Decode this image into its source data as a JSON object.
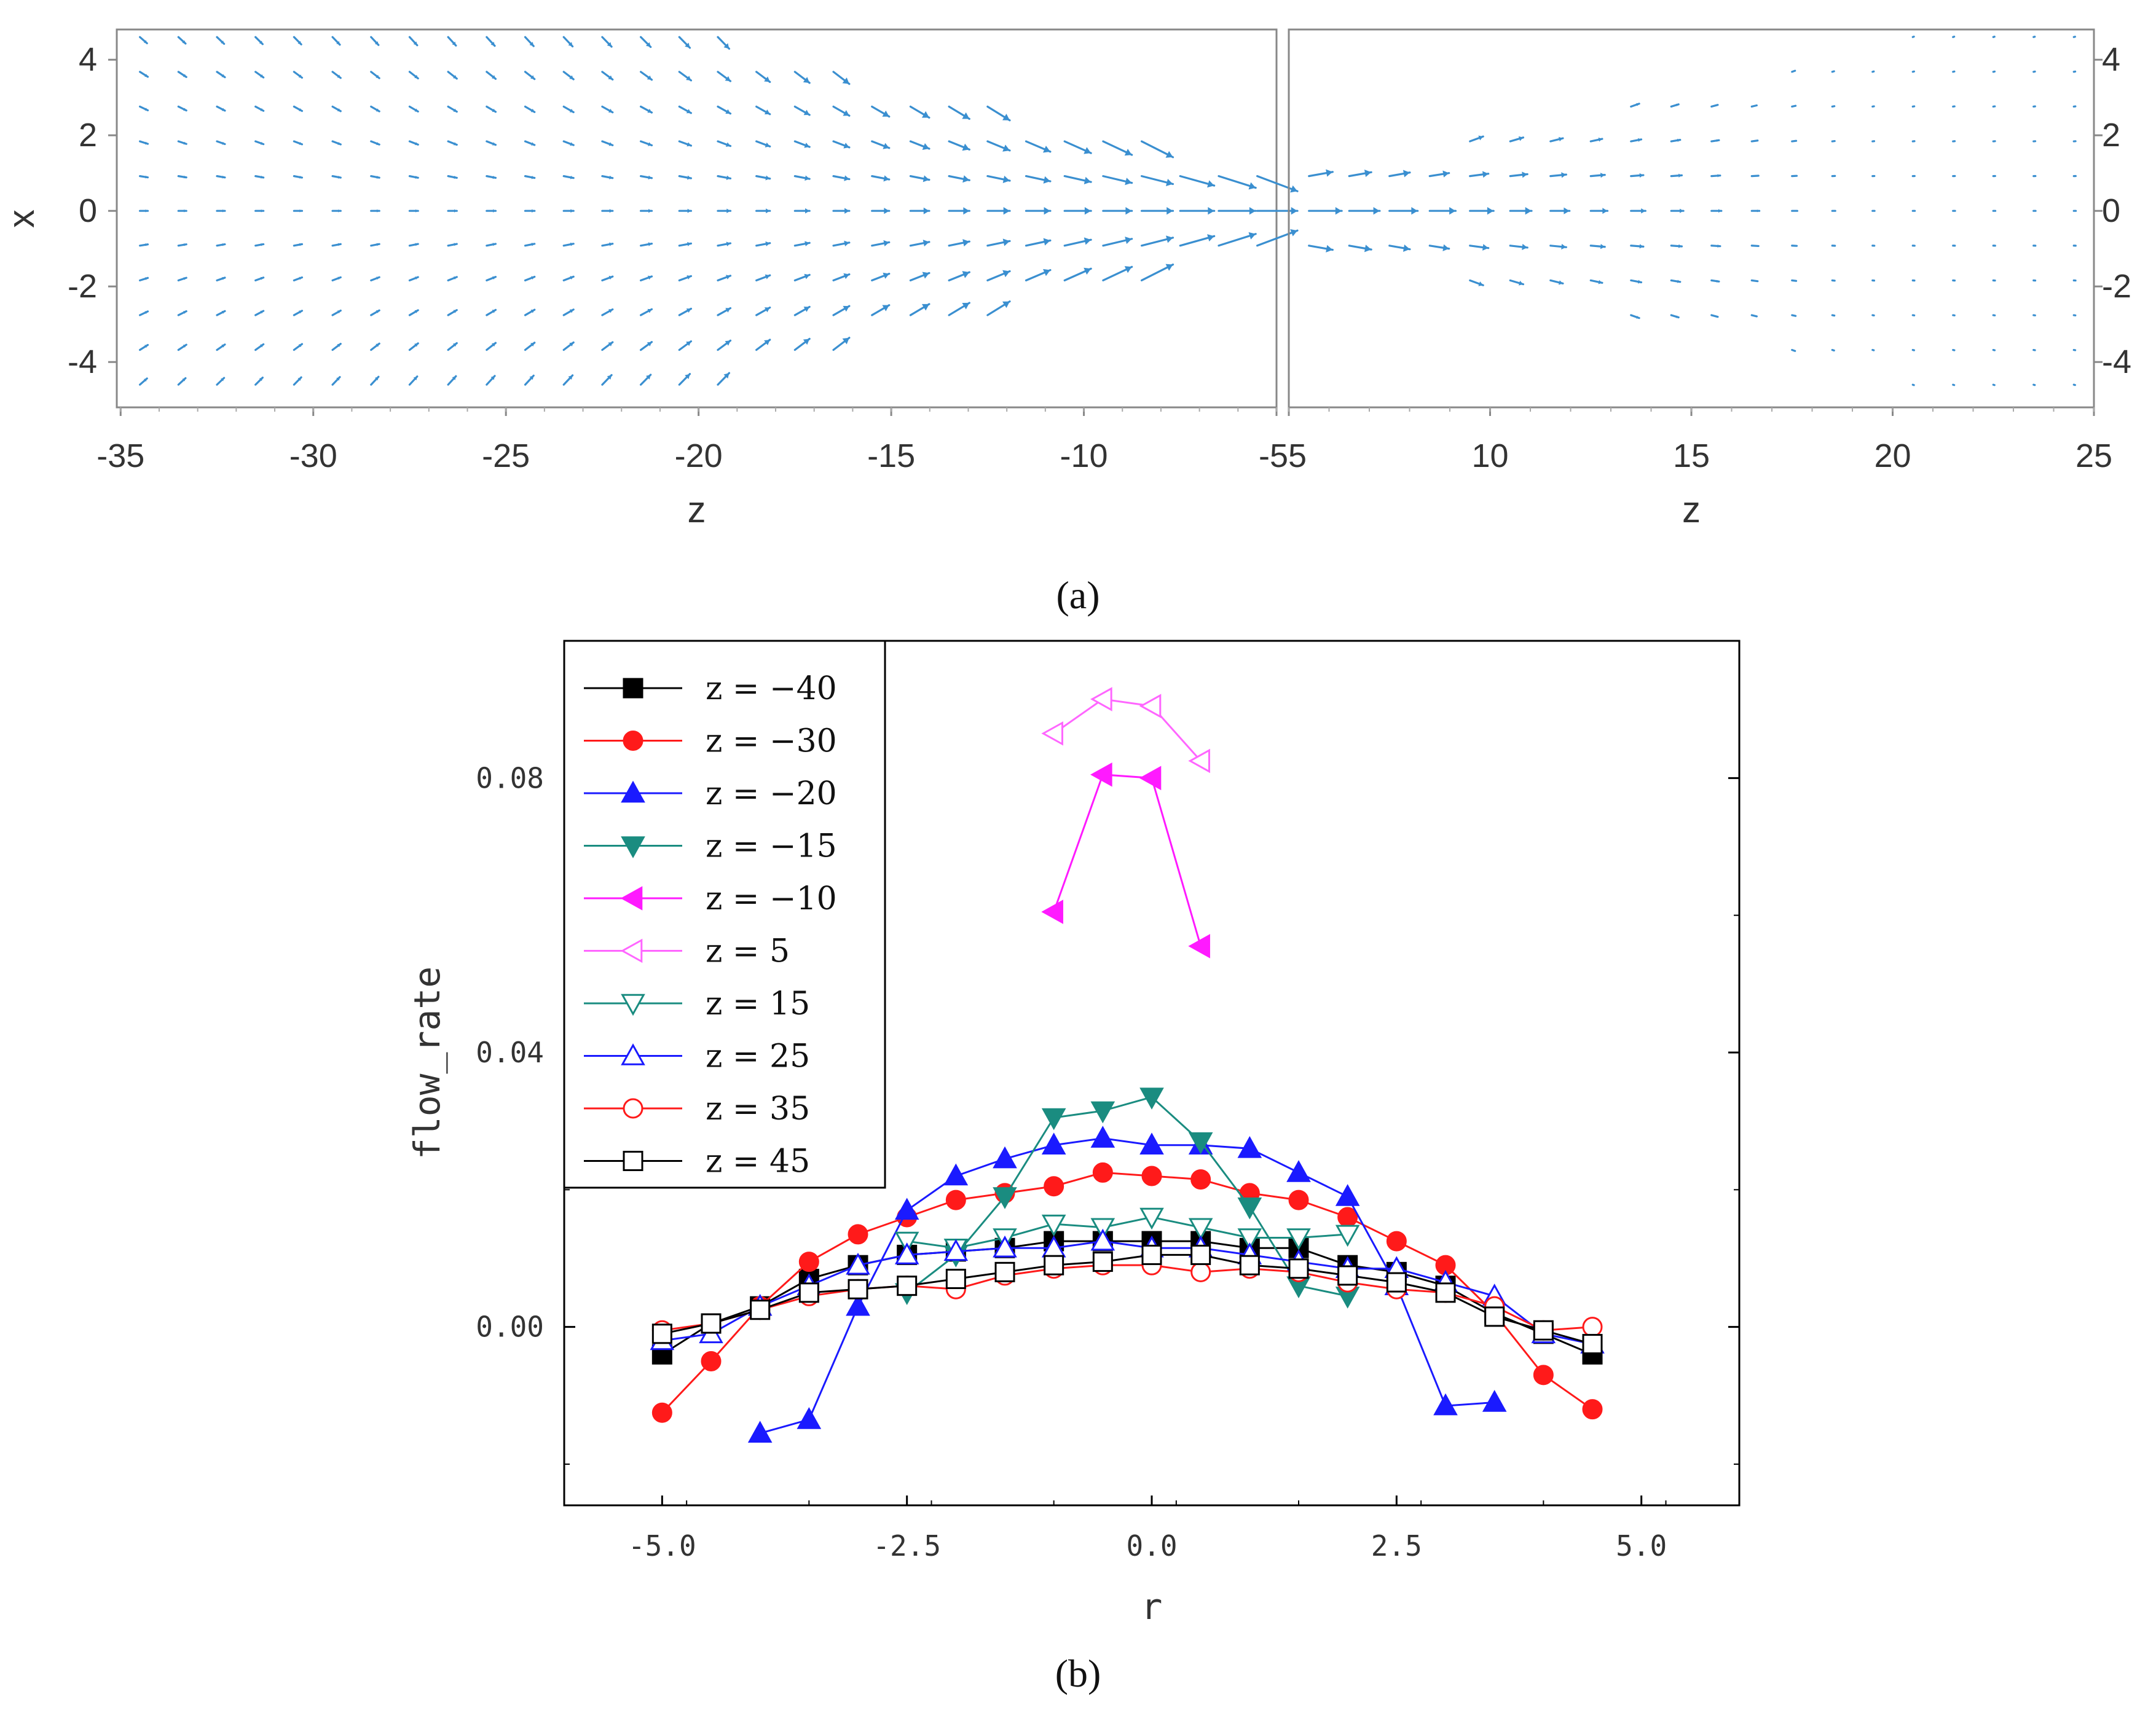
{
  "chart_data": [
    {
      "id": "a",
      "type": "quiver",
      "panel_label": "(a)",
      "arrow_color": "#3a8fd0",
      "note": "velocity vector field on two sub-panels",
      "ylabel": "x",
      "yticks": [
        "4",
        "2",
        "0",
        "-2",
        "-4"
      ],
      "ylim": [
        -5.2,
        4.8
      ],
      "panels": [
        {
          "xlabel": "z",
          "xlim": [
            -35,
            -5
          ],
          "xticks": [
            "-35",
            "-30",
            "-25",
            "-20",
            "-15",
            "-10",
            "-5"
          ]
        },
        {
          "xlabel": "z",
          "xlim": [
            5,
            25
          ],
          "xticks": [
            "5",
            "10",
            "15",
            "20",
            "25"
          ]
        }
      ],
      "joined_tick_label": "-55"
    },
    {
      "id": "b",
      "type": "line",
      "panel_label": "(b)",
      "xlabel": "r",
      "ylabel": "flow_rate",
      "xlim": [
        -6,
        6
      ],
      "ylim": [
        -0.026,
        0.1
      ],
      "xticks": [
        "-5.0",
        "-2.5",
        "0.0",
        "2.5",
        "5.0"
      ],
      "yticks": [
        "0.00",
        "0.04",
        "0.08"
      ],
      "legend_position": "top-left",
      "series": [
        {
          "name": "z = -40",
          "color": "#000000",
          "marker": "square",
          "filled": true,
          "x": [
            -5,
            -4.5,
            -4,
            -3.5,
            -3,
            -2.5,
            -2,
            -1.5,
            -1,
            -0.5,
            0,
            0.5,
            1,
            1.5,
            2,
            2.5,
            3,
            3.5,
            4,
            4.5
          ],
          "y": [
            -0.004,
            0.0005,
            0.003,
            0.007,
            0.009,
            0.0105,
            0.011,
            0.0115,
            0.0125,
            0.0125,
            0.0125,
            0.0125,
            0.0115,
            0.0115,
            0.009,
            0.008,
            0.006,
            0.002,
            -0.001,
            -0.004
          ]
        },
        {
          "name": "z = -30",
          "color": "#ff1a1a",
          "marker": "circle",
          "filled": true,
          "x": [
            -5,
            -4.5,
            -4,
            -3.5,
            -3,
            -2.5,
            -2,
            -1.5,
            -1,
            -0.5,
            0,
            0.5,
            1,
            1.5,
            2,
            2.5,
            3,
            3.5,
            4,
            4.5
          ],
          "y": [
            -0.0125,
            -0.005,
            0.003,
            0.0095,
            0.0135,
            0.016,
            0.0185,
            0.0195,
            0.0205,
            0.0225,
            0.022,
            0.0215,
            0.0195,
            0.0185,
            0.016,
            0.0125,
            0.009,
            0.002,
            -0.007,
            -0.012
          ]
        },
        {
          "name": "z = -20",
          "color": "#1a1aff",
          "marker": "triangle-up",
          "filled": true,
          "x": [
            -4,
            -3.5,
            -3,
            -2.5,
            -2,
            -1.5,
            -1,
            -0.5,
            0,
            0.5,
            1,
            1.5,
            2,
            2.5,
            3,
            3.5
          ],
          "y": [
            -0.0155,
            -0.0135,
            0.003,
            0.017,
            0.022,
            0.0245,
            0.0265,
            0.0275,
            0.0265,
            0.0265,
            0.026,
            0.0225,
            0.019,
            0.006,
            -0.0115,
            -0.011
          ]
        },
        {
          "name": "z = -15",
          "color": "#1a8c80",
          "marker": "triangle-down",
          "filled": true,
          "x": [
            -2.5,
            -2,
            -1.5,
            -1,
            -0.5,
            0,
            0.5,
            1,
            1.5,
            2
          ],
          "y": [
            0.005,
            0.0105,
            0.019,
            0.0305,
            0.0315,
            0.0335,
            0.027,
            0.0175,
            0.006,
            0.0045
          ]
        },
        {
          "name": "z = -10",
          "color": "#ff1aff",
          "marker": "triangle-left",
          "filled": true,
          "x": [
            -1,
            -0.5,
            0,
            0.5
          ],
          "y": [
            0.0605,
            0.0805,
            0.08,
            0.0555
          ]
        },
        {
          "name": "z = 5",
          "color": "#ff66ff",
          "marker": "triangle-left",
          "filled": false,
          "x": [
            -1,
            -0.5,
            0,
            0.5
          ],
          "y": [
            0.0865,
            0.0915,
            0.0905,
            0.0825
          ]
        },
        {
          "name": "z = 15",
          "color": "#1a8c80",
          "marker": "triangle-down",
          "filled": false,
          "x": [
            -2.5,
            -2,
            -1.5,
            -1,
            -0.5,
            0,
            0.5,
            1,
            1.5,
            2
          ],
          "y": [
            0.0125,
            0.0115,
            0.013,
            0.015,
            0.0145,
            0.016,
            0.0145,
            0.013,
            0.013,
            0.0135
          ]
        },
        {
          "name": "z = 25",
          "color": "#1a1aff",
          "marker": "triangle-up",
          "filled": false,
          "x": [
            -5,
            -4.5,
            -4,
            -3.5,
            -3,
            -2.5,
            -2,
            -1.5,
            -1,
            -0.5,
            0,
            0.5,
            1,
            1.5,
            2,
            2.5,
            3,
            3.5,
            4,
            4.5
          ],
          "y": [
            -0.002,
            -0.001,
            0.003,
            0.006,
            0.009,
            0.0105,
            0.011,
            0.0115,
            0.0115,
            0.0125,
            0.0115,
            0.0115,
            0.0105,
            0.0095,
            0.0085,
            0.0085,
            0.0065,
            0.0045,
            -0.001,
            -0.0025
          ]
        },
        {
          "name": "z = 35",
          "color": "#ff1a1a",
          "marker": "circle",
          "filled": false,
          "x": [
            -5,
            -4.5,
            -4,
            -3.5,
            -3,
            -2.5,
            -2,
            -1.5,
            -1,
            -0.5,
            0,
            0.5,
            1,
            1.5,
            2,
            2.5,
            3,
            3.5,
            4,
            4.5
          ],
          "y": [
            -0.0005,
            0.0005,
            0.0025,
            0.0045,
            0.0055,
            0.006,
            0.0055,
            0.0075,
            0.0085,
            0.009,
            0.009,
            0.008,
            0.0085,
            0.008,
            0.0065,
            0.0055,
            0.005,
            0.003,
            -0.0005,
            0
          ]
        },
        {
          "name": "z = 45",
          "color": "#000000",
          "marker": "square",
          "filled": false,
          "x": [
            -5,
            -4.5,
            -4,
            -3.5,
            -3,
            -2.5,
            -2,
            -1.5,
            -1,
            -0.5,
            0,
            0.5,
            1,
            1.5,
            2,
            2.5,
            3,
            3.5,
            4,
            4.5
          ],
          "y": [
            -0.001,
            0.0005,
            0.0025,
            0.005,
            0.0055,
            0.006,
            0.007,
            0.008,
            0.009,
            0.0095,
            0.0105,
            0.0105,
            0.009,
            0.0085,
            0.0075,
            0.0065,
            0.005,
            0.0015,
            -0.0005,
            -0.0025
          ]
        }
      ]
    }
  ]
}
